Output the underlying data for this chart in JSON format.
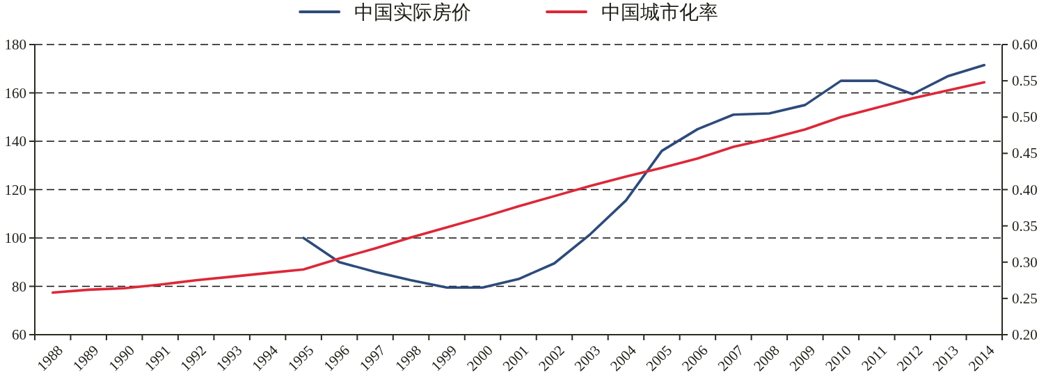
{
  "chart_data": {
    "type": "line",
    "categories": [
      "1988",
      "1989",
      "1990",
      "1991",
      "1992",
      "1993",
      "1994",
      "1995",
      "1996",
      "1997",
      "1998",
      "1999",
      "2000",
      "2001",
      "2002",
      "2003",
      "2004",
      "2005",
      "2006",
      "2007",
      "2008",
      "2009",
      "2010",
      "2011",
      "2012",
      "2013",
      "2014"
    ],
    "series": [
      {
        "name": "中国实际房价",
        "color": "#2d4b7a",
        "values": [
          null,
          null,
          null,
          null,
          null,
          null,
          null,
          100,
          90,
          86,
          82.5,
          79.5,
          79.5,
          83,
          89.5,
          101.5,
          115.5,
          136,
          145,
          151,
          151.5,
          155,
          165,
          165,
          159.5,
          167,
          171.5
        ]
      },
      {
        "name": "中国城市化率",
        "color": "#dc2838",
        "axis": "y2",
        "values": [
          0.258,
          0.262,
          0.264,
          0.269,
          0.275,
          0.28,
          0.285,
          0.29,
          0.305,
          0.319,
          0.334,
          0.348,
          0.362,
          0.377,
          0.391,
          0.405,
          0.418,
          0.43,
          0.443,
          0.459,
          0.47,
          0.483,
          0.5,
          0.513,
          0.526,
          0.537,
          0.548
        ]
      }
    ],
    "ylim": [
      60,
      180
    ],
    "yticks": [
      60,
      80,
      100,
      120,
      140,
      160,
      180
    ],
    "y2lim": [
      0.2,
      0.6
    ],
    "y2ticks": [
      {
        "value": 0.2,
        "label": "0.20"
      },
      {
        "value": 0.25,
        "label": "0.25"
      },
      {
        "value": 0.3,
        "label": "0.30"
      },
      {
        "value": 0.35,
        "label": "0.35"
      },
      {
        "value": 0.4,
        "label": "0.40"
      },
      {
        "value": 0.45,
        "label": "0.45"
      },
      {
        "value": 0.5,
        "label": "0.50"
      },
      {
        "value": 0.55,
        "label": "0.55"
      },
      {
        "value": 0.6,
        "label": "0.60"
      }
    ],
    "grid": "y",
    "legend": "top"
  }
}
